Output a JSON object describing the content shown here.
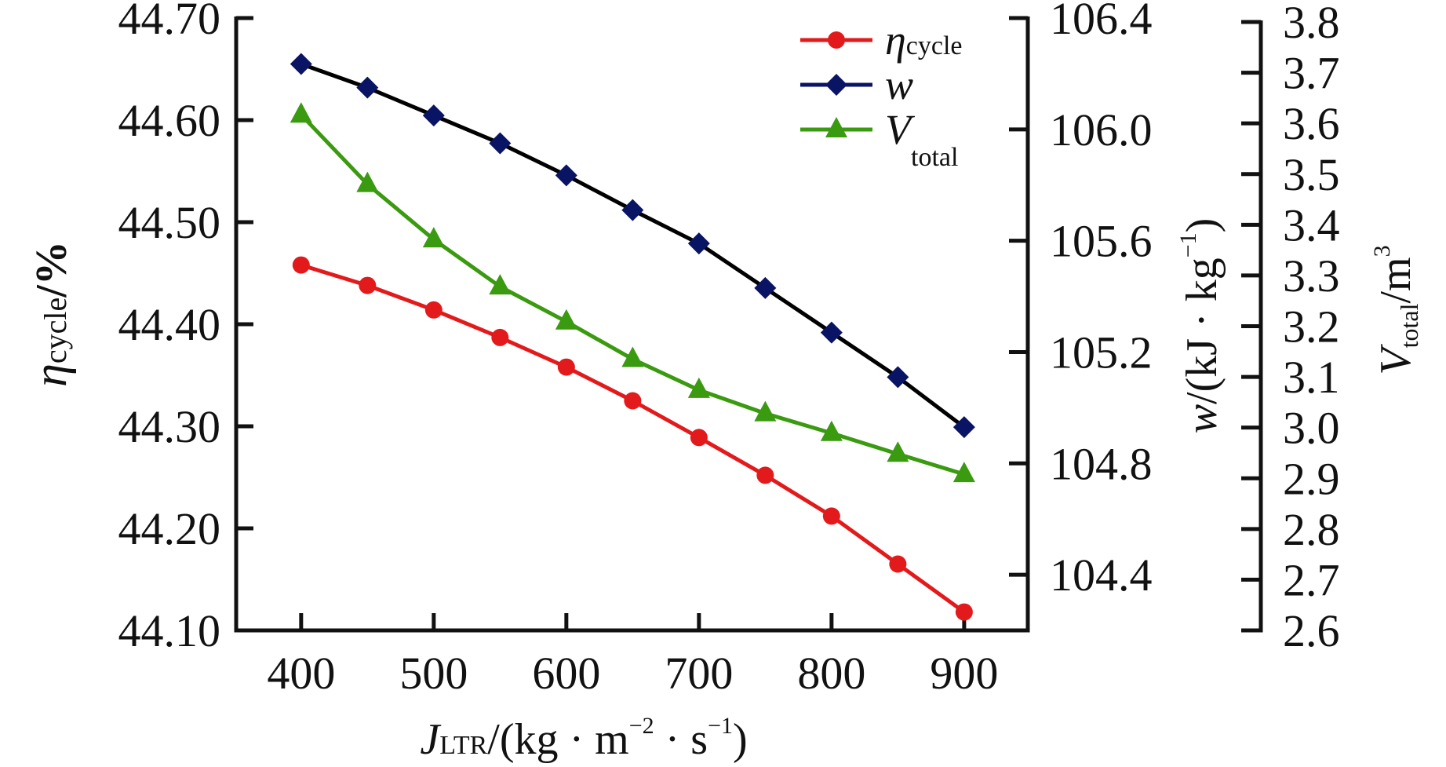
{
  "chart_data": {
    "type": "line",
    "title": "",
    "x": [
      400,
      450,
      500,
      550,
      600,
      650,
      700,
      750,
      800,
      850,
      900
    ],
    "xlim": [
      351,
      948
    ],
    "xticks": [
      400,
      500,
      600,
      700,
      800,
      900
    ],
    "xtick_labels": [
      "400",
      "500",
      "600",
      "700",
      "800",
      "900"
    ],
    "xlabel": {
      "main": "J",
      "sub": "LTR",
      "rest": "/(kg · m",
      "sup1": "−2",
      "mid": " · s",
      "sup2": "−1",
      "end": ")"
    },
    "axes": {
      "left": {
        "label": {
          "main": "η",
          "sub": "cycle",
          "rest": "/%"
        },
        "ylim": [
          44.1,
          44.7
        ],
        "ticks": [
          44.1,
          44.2,
          44.3,
          44.4,
          44.5,
          44.6,
          44.7
        ],
        "tick_labels": [
          "44.10",
          "44.20",
          "44.30",
          "44.40",
          "44.50",
          "44.60",
          "44.70"
        ]
      },
      "right1": {
        "label": {
          "main": "w",
          "rest": "/(kJ · kg",
          "sup": "−1",
          "end": ")"
        },
        "ylim": [
          104.2,
          106.4
        ],
        "ticks": [
          104.4,
          104.8,
          105.2,
          105.6,
          106.0,
          106.4
        ],
        "tick_labels": [
          "104.4",
          "104.8",
          "105.2",
          "105.6",
          "106.0",
          "106.4"
        ]
      },
      "right2": {
        "label": {
          "main": "V",
          "sub": "total",
          "rest": "/m",
          "sup": "3"
        },
        "ylim": [
          2.6,
          3.8
        ],
        "ticks": [
          2.6,
          2.7,
          2.8,
          2.9,
          3.0,
          3.1,
          3.2,
          3.3,
          3.4,
          3.5,
          3.6,
          3.7,
          3.8
        ],
        "tick_labels": [
          "2.6",
          "2.7",
          "2.8",
          "2.9",
          "3.0",
          "3.1",
          "3.2",
          "3.3",
          "3.4",
          "3.5",
          "3.6",
          "3.7",
          "3.8"
        ]
      }
    },
    "series": [
      {
        "name": "η_cycle",
        "legend": {
          "main": "η",
          "sub": "cycle"
        },
        "axis": "left",
        "marker": "circle",
        "line_color": "#e31a1c",
        "marker_color": "#e31a1c",
        "values": [
          44.458,
          44.438,
          44.414,
          44.387,
          44.358,
          44.325,
          44.289,
          44.252,
          44.212,
          44.165,
          44.118
        ]
      },
      {
        "name": "w",
        "legend": {
          "main": "w",
          "sub": ""
        },
        "axis": "right1",
        "marker": "diamond",
        "line_color": "#000000",
        "marker_color": "#0a1464",
        "legend_line_color": "#0a1464",
        "values": [
          106.235,
          106.15,
          106.05,
          105.95,
          105.835,
          105.71,
          105.59,
          105.43,
          105.27,
          105.11,
          104.93
        ]
      },
      {
        "name": "V_total",
        "legend": {
          "main": "V",
          "sub": "total"
        },
        "axis": "right2",
        "marker": "triangle",
        "line_color": "#3a9a10",
        "marker_color": "#3a9a10",
        "values": [
          3.617,
          3.48,
          3.371,
          3.278,
          3.209,
          3.135,
          3.074,
          3.028,
          2.989,
          2.948,
          2.908
        ]
      }
    ],
    "legend_position": "top-right",
    "grid": false
  }
}
